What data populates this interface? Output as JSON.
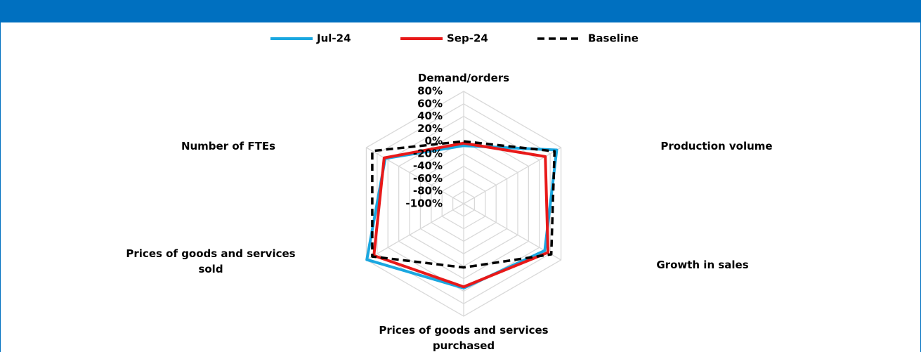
{
  "chart_data": {
    "type": "radar",
    "categories": [
      "Demand/orders",
      "Production volume",
      "Growth in sales",
      "Prices of goods and services purchased",
      "Prices of goods and services sold",
      "Number of FTEs"
    ],
    "series": [
      {
        "name": "Jul-24",
        "color": "#1aa7e0",
        "values": [
          -7,
          72,
          50,
          35,
          79,
          45
        ]
      },
      {
        "name": "Sep-24",
        "color": "#e81919",
        "values": [
          -3,
          51,
          56,
          33,
          66,
          47
        ]
      },
      {
        "name": "Baseline",
        "color": "#000000",
        "dashed": true,
        "values": [
          0,
          68,
          62,
          2,
          69,
          69
        ]
      }
    ],
    "rlim": [
      -100,
      80
    ],
    "rticks": [
      {
        "value": 80,
        "label": "80%"
      },
      {
        "value": 60,
        "label": "60%"
      },
      {
        "value": 40,
        "label": "40%"
      },
      {
        "value": 20,
        "label": "20%"
      },
      {
        "value": 0,
        "label": "0%"
      },
      {
        "value": -20,
        "label": "-20%"
      },
      {
        "value": -40,
        "label": "-40%"
      },
      {
        "value": -60,
        "label": "-60%"
      },
      {
        "value": -80,
        "label": "-80%"
      },
      {
        "value": -100,
        "label": "-100%"
      }
    ],
    "grid": true,
    "legend": "top"
  }
}
